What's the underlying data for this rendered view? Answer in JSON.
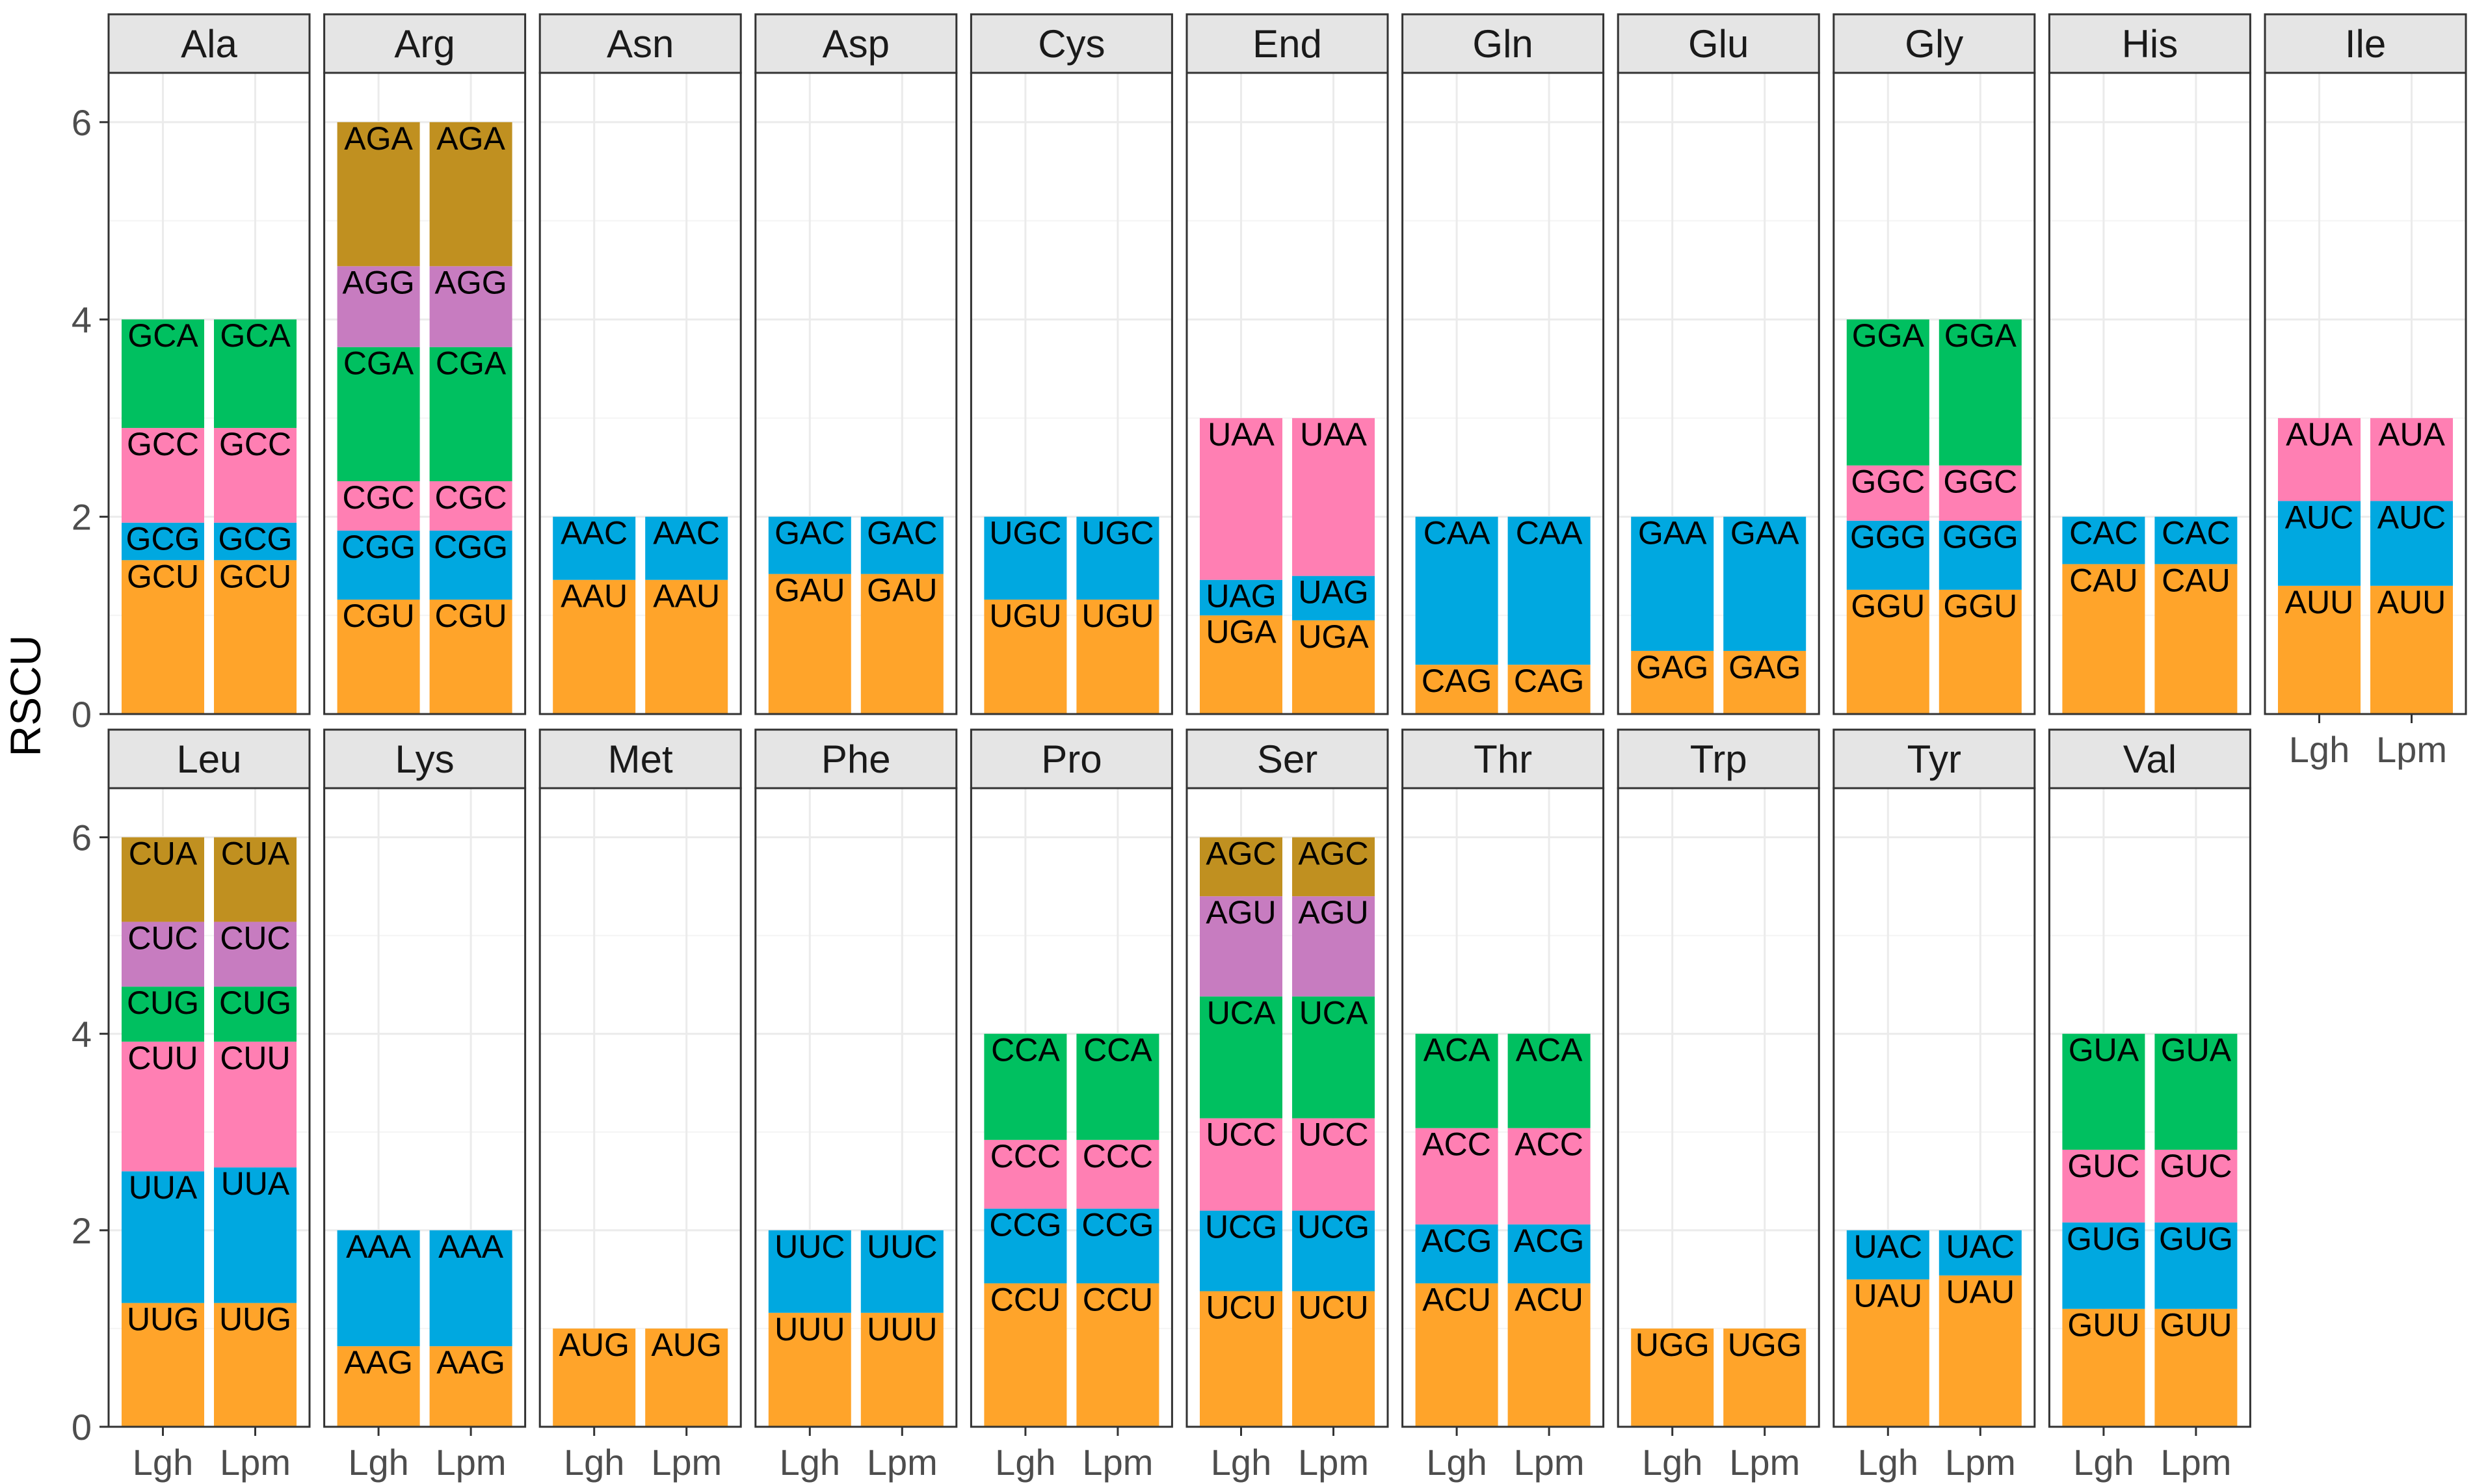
{
  "chart_data": {
    "type": "bar",
    "subtype": "stacked-faceted",
    "ylabel": "RSCU",
    "xlabel": "",
    "ylim": [
      0,
      6.5
    ],
    "yticks": [
      0,
      2,
      4,
      6
    ],
    "categories": [
      "Lgh",
      "Lpm"
    ],
    "facet_rows": 2,
    "facet_cols": 11,
    "grid": true,
    "colors": {
      "1": "#FFA42A",
      "2": "#00A8E0",
      "3": "#FF7FB3",
      "4": "#00C060",
      "5": "#C77CC0",
      "6": "#C09020"
    },
    "facets": [
      {
        "name": "Ala",
        "segments": [
          {
            "codon": "GCU",
            "values": [
              1.56,
              1.56
            ]
          },
          {
            "codon": "GCG",
            "values": [
              0.38,
              0.38
            ]
          },
          {
            "codon": "GCC",
            "values": [
              0.96,
              0.96
            ]
          },
          {
            "codon": "GCA",
            "values": [
              1.1,
              1.1
            ]
          }
        ]
      },
      {
        "name": "Arg",
        "segments": [
          {
            "codon": "CGU",
            "values": [
              1.16,
              1.16
            ]
          },
          {
            "codon": "CGG",
            "values": [
              0.7,
              0.7
            ]
          },
          {
            "codon": "CGC",
            "values": [
              0.5,
              0.5
            ]
          },
          {
            "codon": "CGA",
            "values": [
              1.36,
              1.36
            ]
          },
          {
            "codon": "AGG",
            "values": [
              0.82,
              0.82
            ]
          },
          {
            "codon": "AGA",
            "values": [
              1.46,
              1.46
            ]
          }
        ]
      },
      {
        "name": "Asn",
        "segments": [
          {
            "codon": "AAU",
            "values": [
              1.36,
              1.36
            ]
          },
          {
            "codon": "AAC",
            "values": [
              0.64,
              0.64
            ]
          }
        ]
      },
      {
        "name": "Asp",
        "segments": [
          {
            "codon": "GAU",
            "values": [
              1.42,
              1.42
            ]
          },
          {
            "codon": "GAC",
            "values": [
              0.58,
              0.58
            ]
          }
        ]
      },
      {
        "name": "Cys",
        "segments": [
          {
            "codon": "UGU",
            "values": [
              1.16,
              1.16
            ]
          },
          {
            "codon": "UGC",
            "values": [
              0.84,
              0.84
            ]
          }
        ]
      },
      {
        "name": "End",
        "segments": [
          {
            "codon": "UGA",
            "values": [
              1.0,
              0.95
            ]
          },
          {
            "codon": "UAG",
            "values": [
              0.36,
              0.45
            ]
          },
          {
            "codon": "UAA",
            "values": [
              1.64,
              1.6
            ]
          }
        ]
      },
      {
        "name": "Gln",
        "segments": [
          {
            "codon": "CAG",
            "values": [
              0.5,
              0.5
            ]
          },
          {
            "codon": "CAA",
            "values": [
              1.5,
              1.5
            ]
          }
        ]
      },
      {
        "name": "Glu",
        "segments": [
          {
            "codon": "GAG",
            "values": [
              0.64,
              0.64
            ]
          },
          {
            "codon": "GAA",
            "values": [
              1.36,
              1.36
            ]
          }
        ]
      },
      {
        "name": "Gly",
        "segments": [
          {
            "codon": "GGU",
            "values": [
              1.26,
              1.26
            ]
          },
          {
            "codon": "GGG",
            "values": [
              0.7,
              0.7
            ]
          },
          {
            "codon": "GGC",
            "values": [
              0.56,
              0.56
            ]
          },
          {
            "codon": "GGA",
            "values": [
              1.48,
              1.48
            ]
          }
        ]
      },
      {
        "name": "His",
        "segments": [
          {
            "codon": "CAU",
            "values": [
              1.52,
              1.52
            ]
          },
          {
            "codon": "CAC",
            "values": [
              0.48,
              0.48
            ]
          }
        ]
      },
      {
        "name": "Ile",
        "segments": [
          {
            "codon": "AUU",
            "values": [
              1.3,
              1.3
            ]
          },
          {
            "codon": "AUC",
            "values": [
              0.86,
              0.86
            ]
          },
          {
            "codon": "AUA",
            "values": [
              0.84,
              0.84
            ]
          }
        ]
      },
      {
        "name": "Leu",
        "segments": [
          {
            "codon": "UUG",
            "values": [
              1.26,
              1.26
            ]
          },
          {
            "codon": "UUA",
            "values": [
              1.34,
              1.38
            ]
          },
          {
            "codon": "CUU",
            "values": [
              1.32,
              1.28
            ]
          },
          {
            "codon": "CUG",
            "values": [
              0.56,
              0.56
            ]
          },
          {
            "codon": "CUC",
            "values": [
              0.66,
              0.66
            ]
          },
          {
            "codon": "CUA",
            "values": [
              0.86,
              0.86
            ]
          }
        ]
      },
      {
        "name": "Lys",
        "segments": [
          {
            "codon": "AAG",
            "values": [
              0.82,
              0.82
            ]
          },
          {
            "codon": "AAA",
            "values": [
              1.18,
              1.18
            ]
          }
        ]
      },
      {
        "name": "Met",
        "segments": [
          {
            "codon": "AUG",
            "values": [
              1.0,
              1.0
            ]
          }
        ]
      },
      {
        "name": "Phe",
        "segments": [
          {
            "codon": "UUU",
            "values": [
              1.16,
              1.16
            ]
          },
          {
            "codon": "UUC",
            "values": [
              0.84,
              0.84
            ]
          }
        ]
      },
      {
        "name": "Pro",
        "segments": [
          {
            "codon": "CCU",
            "values": [
              1.46,
              1.46
            ]
          },
          {
            "codon": "CCG",
            "values": [
              0.76,
              0.76
            ]
          },
          {
            "codon": "CCC",
            "values": [
              0.7,
              0.7
            ]
          },
          {
            "codon": "CCA",
            "values": [
              1.08,
              1.08
            ]
          }
        ]
      },
      {
        "name": "Ser",
        "segments": [
          {
            "codon": "UCU",
            "values": [
              1.38,
              1.38
            ]
          },
          {
            "codon": "UCG",
            "values": [
              0.82,
              0.82
            ]
          },
          {
            "codon": "UCC",
            "values": [
              0.94,
              0.94
            ]
          },
          {
            "codon": "UCA",
            "values": [
              1.24,
              1.24
            ]
          },
          {
            "codon": "AGU",
            "values": [
              1.02,
              1.02
            ]
          },
          {
            "codon": "AGC",
            "values": [
              0.6,
              0.6
            ]
          }
        ]
      },
      {
        "name": "Thr",
        "segments": [
          {
            "codon": "ACU",
            "values": [
              1.46,
              1.46
            ]
          },
          {
            "codon": "ACG",
            "values": [
              0.6,
              0.6
            ]
          },
          {
            "codon": "ACC",
            "values": [
              0.98,
              0.98
            ]
          },
          {
            "codon": "ACA",
            "values": [
              0.96,
              0.96
            ]
          }
        ]
      },
      {
        "name": "Trp",
        "segments": [
          {
            "codon": "UGG",
            "values": [
              1.0,
              1.0
            ]
          }
        ]
      },
      {
        "name": "Tyr",
        "segments": [
          {
            "codon": "UAU",
            "values": [
              1.5,
              1.54
            ]
          },
          {
            "codon": "UAC",
            "values": [
              0.5,
              0.46
            ]
          }
        ]
      },
      {
        "name": "Val",
        "segments": [
          {
            "codon": "GUU",
            "values": [
              1.2,
              1.2
            ]
          },
          {
            "codon": "GUG",
            "values": [
              0.88,
              0.88
            ]
          },
          {
            "codon": "GUC",
            "values": [
              0.74,
              0.74
            ]
          },
          {
            "codon": "GUA",
            "values": [
              1.18,
              1.18
            ]
          }
        ]
      }
    ]
  }
}
